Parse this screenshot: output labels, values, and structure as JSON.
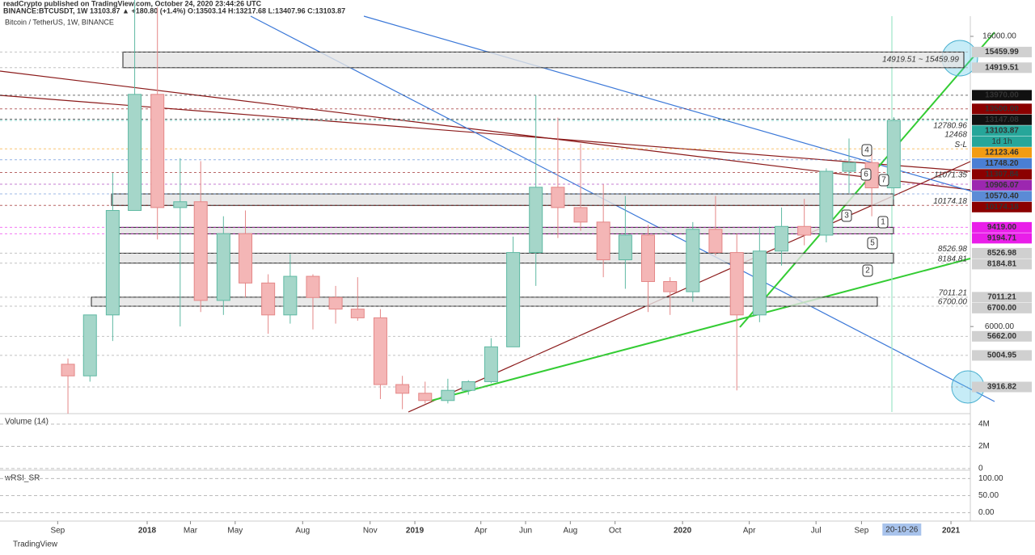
{
  "header": {
    "line1": "readCrypto published on TradingView.com, October 24, 2020 23:44:26 UTC",
    "line2": "BINANCE:BTCUSDT, 1W  13103.87 ▲ +180.80 (+1.4%) O:13503.14 H:13217.68 L:13407.96 C:13103.87",
    "symbol": "Bitcoin / TetherUS, 1W, BINANCE"
  },
  "chart_data": {
    "type": "candlestick",
    "x": [
      "2017-09",
      "2017-10",
      "2017-11",
      "2017-12",
      "2018-01",
      "2018-02",
      "2018-03",
      "2018-04",
      "2018-05",
      "2018-06",
      "2018-07",
      "2018-08",
      "2018-09",
      "2018-10",
      "2018-11",
      "2018-12",
      "2019-01",
      "2019-02",
      "2019-03",
      "2019-04",
      "2019-05",
      "2019-06",
      "2019-07",
      "2019-08",
      "2019-09",
      "2019-10",
      "2019-11",
      "2019-12",
      "2020-01",
      "2020-02",
      "2020-03",
      "2020-04",
      "2020-05",
      "2020-06",
      "2020-07",
      "2020-08",
      "2020-09",
      "2020-10"
    ],
    "open": [
      4700,
      4300,
      6400,
      10000,
      14000,
      10100,
      10300,
      6900,
      9200,
      7500,
      6400,
      7730,
      7000,
      6600,
      6300,
      4000,
      3700,
      3450,
      3800,
      4100,
      5300,
      8550,
      10800,
      10100,
      9600,
      8300,
      9150,
      7550,
      7200,
      9350,
      8550,
      6400,
      8600,
      9450,
      9150,
      11350,
      11650,
      10780
    ],
    "high": [
      4900,
      6400,
      11300,
      19800,
      17000,
      11800,
      11700,
      9800,
      10000,
      7800,
      8500,
      7800,
      7400,
      7700,
      6600,
      4300,
      4100,
      4200,
      4150,
      5600,
      9100,
      13970,
      13200,
      12300,
      10900,
      10500,
      9500,
      7700,
      9600,
      10500,
      9200,
      9450,
      10100,
      10400,
      11450,
      12480,
      12100,
      13217
    ],
    "low": [
      3000,
      4100,
      5500,
      10000,
      9000,
      6000,
      6500,
      6400,
      7000,
      5750,
      6100,
      5900,
      6100,
      6200,
      3500,
      3150,
      3350,
      3350,
      3650,
      4050,
      5300,
      7400,
      9050,
      9300,
      7700,
      7300,
      6500,
      6400,
      6850,
      8450,
      3800,
      6150,
      8100,
      8800,
      8900,
      10600,
      9800,
      10380
    ],
    "close": [
      4300,
      6400,
      10000,
      14000,
      10100,
      10300,
      6900,
      9200,
      7500,
      6400,
      7730,
      7000,
      6600,
      6300,
      4000,
      3700,
      3450,
      3800,
      4100,
      5300,
      8550,
      10800,
      10100,
      9600,
      8300,
      9150,
      7550,
      7200,
      9350,
      8550,
      6400,
      8600,
      9450,
      9150,
      11350,
      11650,
      10780,
      13103.87
    ],
    "up_color": "#a5d6c9",
    "down_color": "#f4b6b6",
    "ylim": [
      3054,
      16696
    ],
    "yticks": [
      {
        "value": 16000,
        "label": "16000.00"
      },
      {
        "value": 6000,
        "label": "6000.00"
      }
    ],
    "xticks": [
      {
        "value": "2017-09-01",
        "label": "Sep"
      },
      {
        "value": "2018-01-01",
        "label": "2018"
      },
      {
        "value": "2018-03-01",
        "label": "Mar"
      },
      {
        "value": "2018-05-01",
        "label": "May"
      },
      {
        "value": "2018-08-01",
        "label": "Aug"
      },
      {
        "value": "2018-11-01",
        "label": "Nov"
      },
      {
        "value": "2019-01-01",
        "label": "2019"
      },
      {
        "value": "2019-04-01",
        "label": "Apr"
      },
      {
        "value": "2019-06-01",
        "label": "Jun"
      },
      {
        "value": "2019-08-01",
        "label": "Aug"
      },
      {
        "value": "2019-10-01",
        "label": "Oct"
      },
      {
        "value": "2020-01-01",
        "label": "2020"
      },
      {
        "value": "2020-04-01",
        "label": "Apr"
      },
      {
        "value": "2020-07-01",
        "label": "Jul"
      },
      {
        "value": "2020-09-01",
        "label": "Sep"
      },
      {
        "value": "2021-01-01",
        "label": "2021"
      }
    ],
    "cursor_date": {
      "value": "2020-10-26",
      "label": "20-10-26"
    },
    "price_labels": [
      {
        "value": 15459.99,
        "label": "15459.99",
        "color": "#d0d0d0",
        "text_color": "#222"
      },
      {
        "value": 14919.51,
        "label": "14919.51",
        "color": "#d0d0d0",
        "text_color": "#222"
      },
      {
        "value": 13970,
        "label": "13970.00",
        "color": "#111111",
        "text_color": "#fff"
      },
      {
        "value": 13500,
        "label": "13500.00",
        "color": "#8b0000",
        "text_color": "#fff"
      },
      {
        "value": 13147.08,
        "label": "13147.08",
        "color": "#111111",
        "text_color": "#fff"
      },
      {
        "value": 13103.87,
        "label": "13103.87",
        "color": "#26a69a",
        "text_color": "#fff"
      },
      {
        "value": 12123.46,
        "label": "12123.46",
        "color": "#f39c12",
        "text_color": "#fff"
      },
      {
        "value": 11748.2,
        "label": "11748.20",
        "color": "#4a7fd4",
        "text_color": "#fff"
      },
      {
        "value": 11307.84,
        "label": "11307.84",
        "color": "#8b0000",
        "text_color": "#fff"
      },
      {
        "value": 10906.07,
        "label": "10906.07",
        "color": "#9c27b0",
        "text_color": "#fff"
      },
      {
        "value": 10570.4,
        "label": "10570.40",
        "color": "#5b8bd6",
        "text_color": "#fff"
      },
      {
        "value": 10174.18,
        "label": "10174.18",
        "color": "#8b0000",
        "text_color": "#fff"
      },
      {
        "value": 9419,
        "label": "9419.00",
        "color": "#e91ee9",
        "text_color": "#fff"
      },
      {
        "value": 9194.71,
        "label": "9194.71",
        "color": "#e91ee9",
        "text_color": "#fff"
      },
      {
        "value": 8526.98,
        "label": "8526.98",
        "color": "#d0d0d0",
        "text_color": "#222"
      },
      {
        "value": 8184.81,
        "label": "8184.81",
        "color": "#d0d0d0",
        "text_color": "#222"
      },
      {
        "value": 7011.21,
        "label": "7011.21",
        "color": "#d0d0d0",
        "text_color": "#222"
      },
      {
        "value": 6700,
        "label": "6700.00",
        "color": "#d0d0d0",
        "text_color": "#222"
      },
      {
        "value": 5662,
        "label": "5662.00",
        "color": "#d0d0d0",
        "text_color": "#222"
      },
      {
        "value": 5004.95,
        "label": "5004.95",
        "color": "#d0d0d0",
        "text_color": "#222"
      },
      {
        "value": 3916.82,
        "label": "3916.82",
        "color": "#d0d0d0",
        "text_color": "#222"
      }
    ],
    "countdown": "1d 1h",
    "zones": [
      {
        "low": 14919.51,
        "high": 15459.99,
        "label": "14919.51 ~ 15459.99"
      },
      {
        "low": 10174.18,
        "high": 10570.4
      },
      {
        "low": 9194.71,
        "high": 9419
      },
      {
        "low": 8184.81,
        "high": 8526.98
      },
      {
        "low": 6700,
        "high": 7011.21
      }
    ],
    "level_notes": [
      {
        "value": 12780.96,
        "label": "12780.96"
      },
      {
        "value": 12468,
        "label": "12468"
      },
      {
        "value": 12123.46,
        "label": "S-L"
      },
      {
        "value": 11071.35,
        "label": "11071.35"
      },
      {
        "value": 10174.18,
        "label": "10174.18"
      },
      {
        "value": 8526.98,
        "label": "8526.98"
      },
      {
        "value": 8184.81,
        "label": "8184.81"
      },
      {
        "value": 7011.21,
        "label": "7011.21"
      },
      {
        "value": 6700,
        "label": "6700.00"
      }
    ],
    "waves": [
      "1",
      "2",
      "3",
      "4",
      "5",
      "6",
      "7"
    ],
    "volume_pane": {
      "title": "Volume (14)",
      "yticks": [
        {
          "value": 4000000,
          "label": "4M"
        },
        {
          "value": 2000000,
          "label": "2M"
        },
        0
      ],
      "ylim": [
        0,
        4800000
      ]
    },
    "rsi_pane": {
      "title": "wRSI_SR",
      "yticks": [
        {
          "value": 100,
          "label": "100.00"
        },
        {
          "value": 50,
          "label": "50.00"
        },
        {
          "value": 0,
          "label": "0.00"
        }
      ],
      "ylim": [
        -20,
        120
      ]
    },
    "footer": "TradingView"
  }
}
